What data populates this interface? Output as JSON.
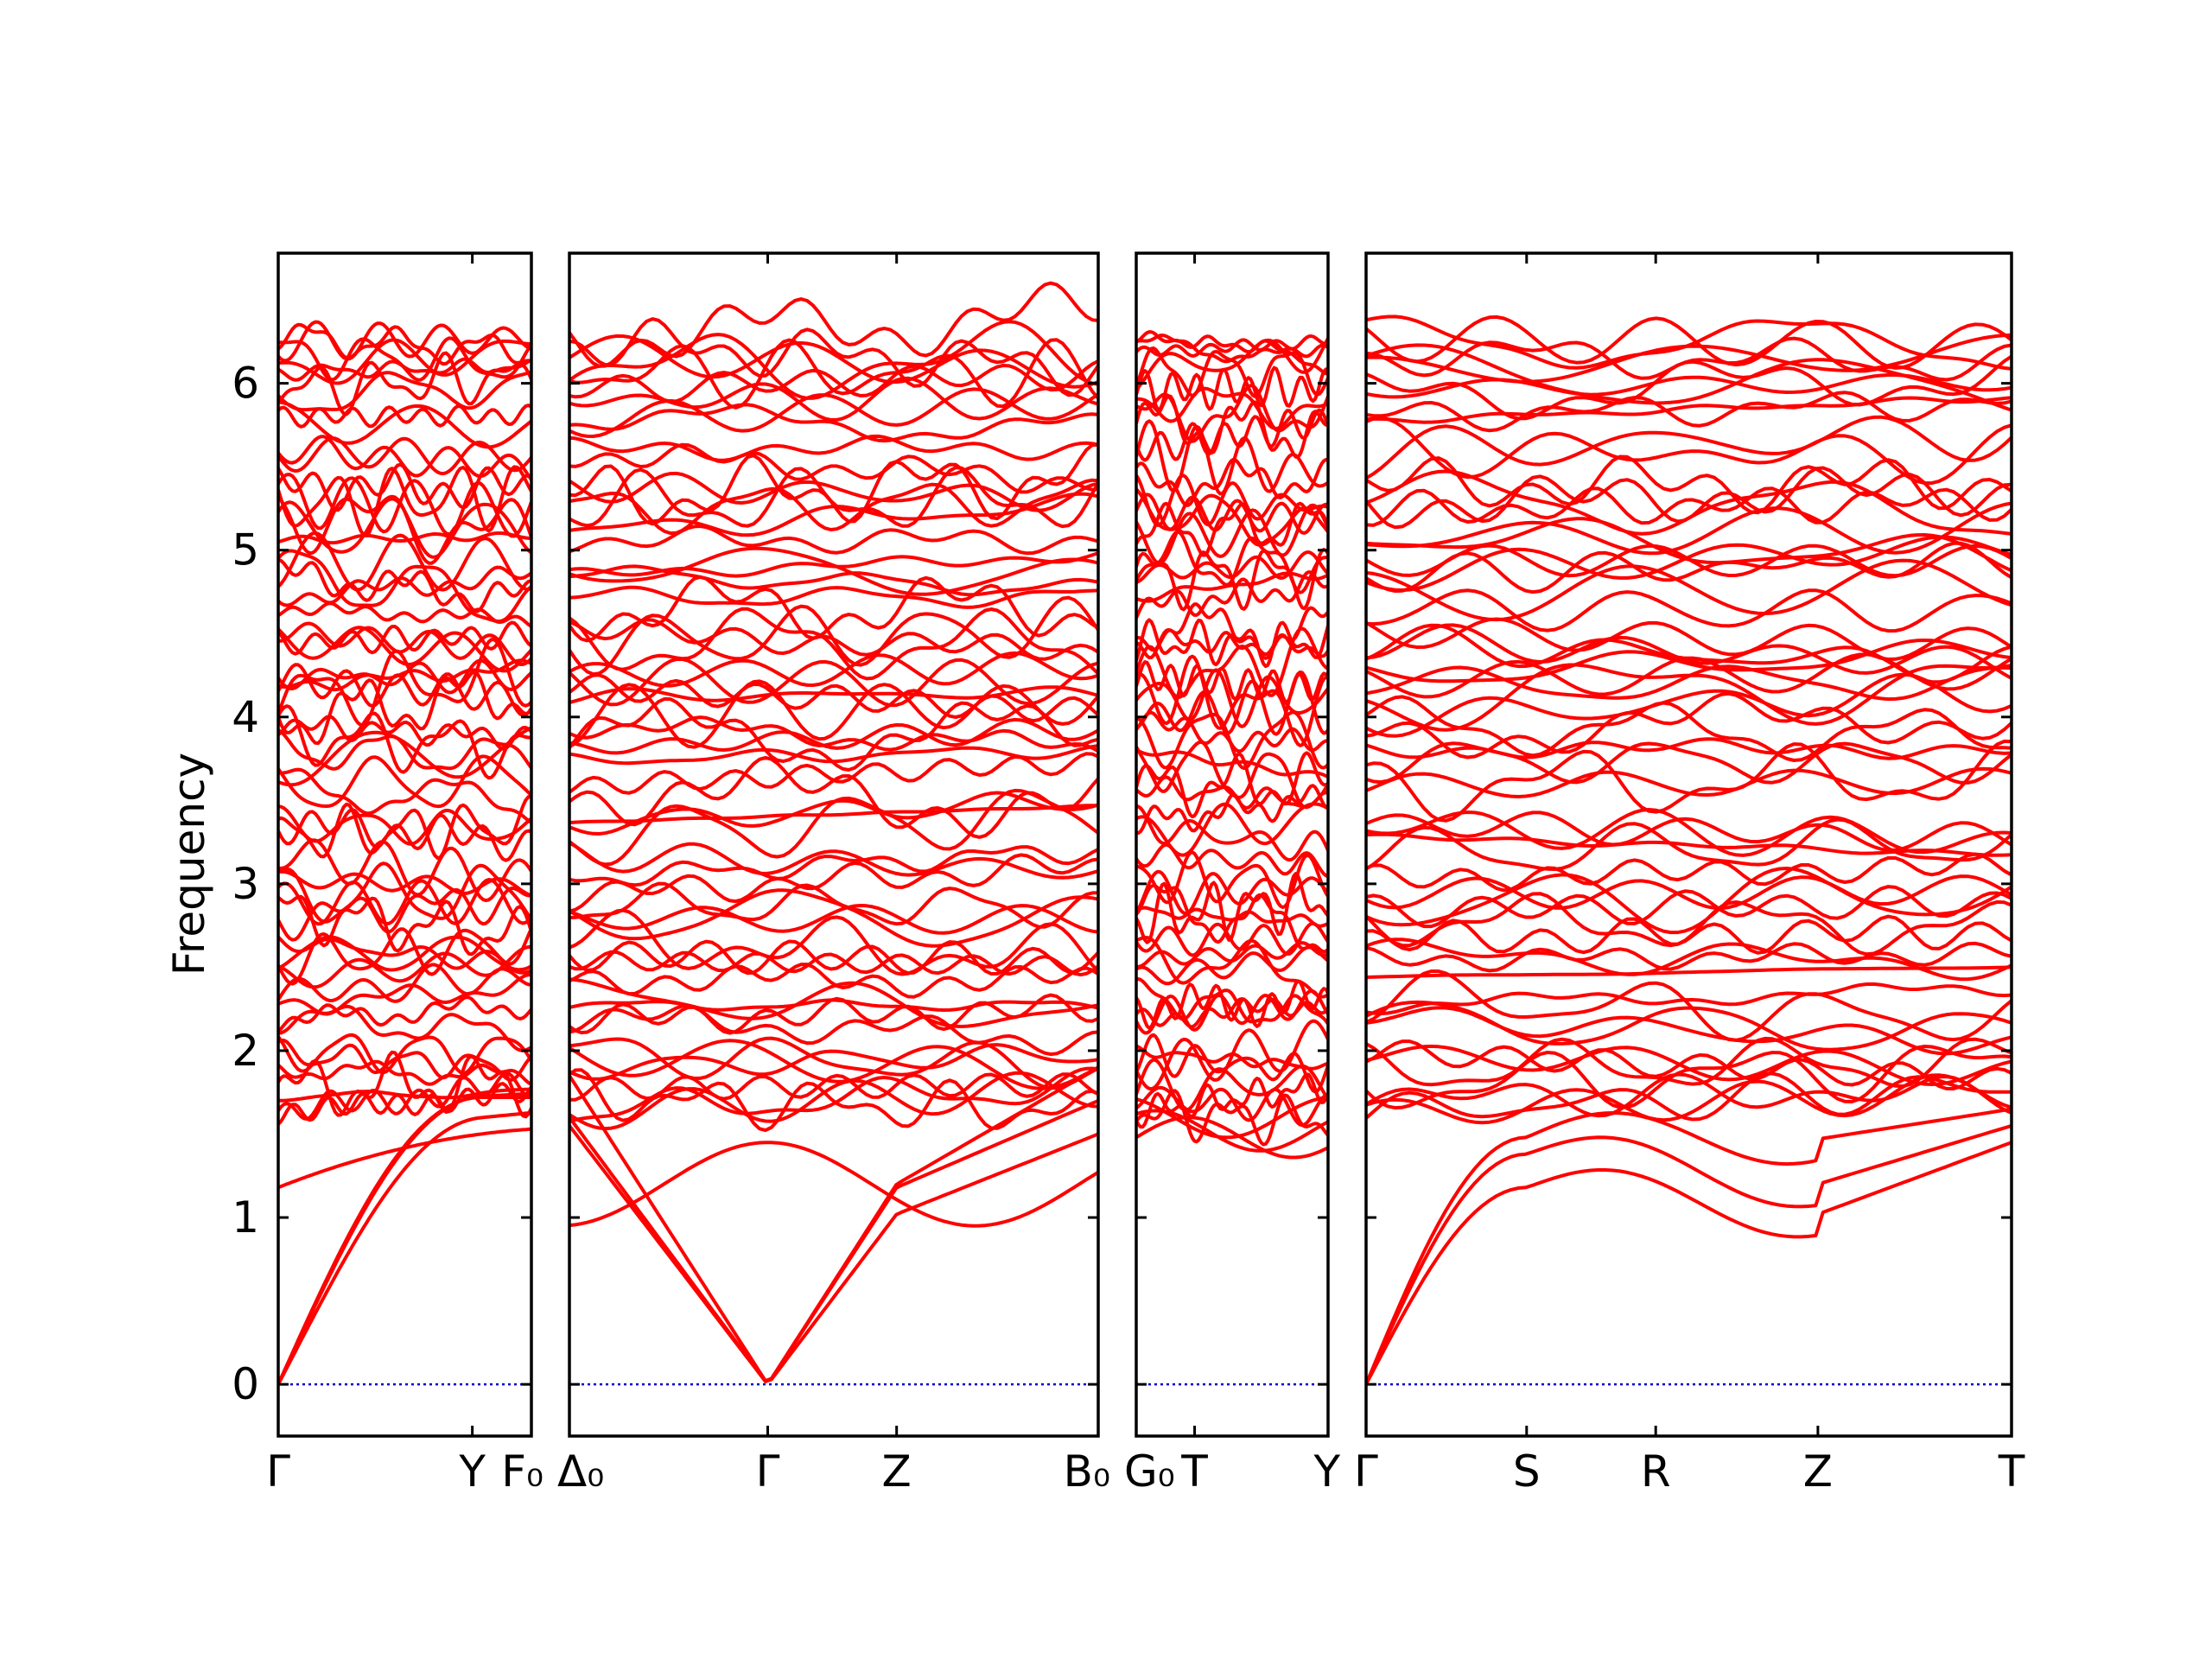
{
  "chart_data": {
    "type": "line",
    "title": "",
    "ylabel": "Frequency",
    "ylim": [
      -0.31,
      6.78
    ],
    "yticks": [
      0,
      1,
      2,
      3,
      4,
      5,
      6
    ],
    "grid": false,
    "legend": "none",
    "band_color": "#ff0000",
    "zero_line_color": "#0000cc",
    "n_bands": 60,
    "panels": [
      {
        "name": "Γ-Y-F0",
        "xlim": [
          0,
          1.5
        ],
        "ticks": [
          {
            "x": 0,
            "label": "Γ"
          },
          {
            "x": 1.15,
            "label": "Y"
          },
          {
            "x": 1.5,
            "label": "F₀"
          }
        ],
        "acoustic_endpoint_values": [
          1.72,
          1.66,
          1.48
        ]
      },
      {
        "name": "Δ0-Γ-Z-B0",
        "xlim": [
          0,
          3.2
        ],
        "ticks": [
          {
            "x": 0,
            "label": "Δ₀"
          },
          {
            "x": 1.2,
            "label": "Γ"
          },
          {
            "x": 1.98,
            "label": "Z"
          },
          {
            "x": 3.2,
            "label": "B₀"
          }
        ],
        "gamma_x": 1.2,
        "z_low_values": [
          1.02,
          1.18
        ]
      },
      {
        "name": "G0-T-Y",
        "xlim": [
          0,
          1.15
        ],
        "ticks": [
          {
            "x": 0,
            "label": "G₀"
          },
          {
            "x": 0.35,
            "label": "T"
          },
          {
            "x": 1.15,
            "label": "Y"
          }
        ]
      },
      {
        "name": "Γ-S-R-Z-T",
        "xlim": [
          0,
          3.9
        ],
        "ticks": [
          {
            "x": 0,
            "label": "Γ"
          },
          {
            "x": 0.97,
            "label": "S"
          },
          {
            "x": 1.75,
            "label": "R"
          },
          {
            "x": 2.73,
            "label": "Z"
          },
          {
            "x": 3.9,
            "label": "T"
          }
        ],
        "s_low_values": [
          1.18,
          1.38,
          1.48
        ],
        "z_low_values": [
          1.02,
          1.2,
          1.47
        ]
      }
    ]
  }
}
